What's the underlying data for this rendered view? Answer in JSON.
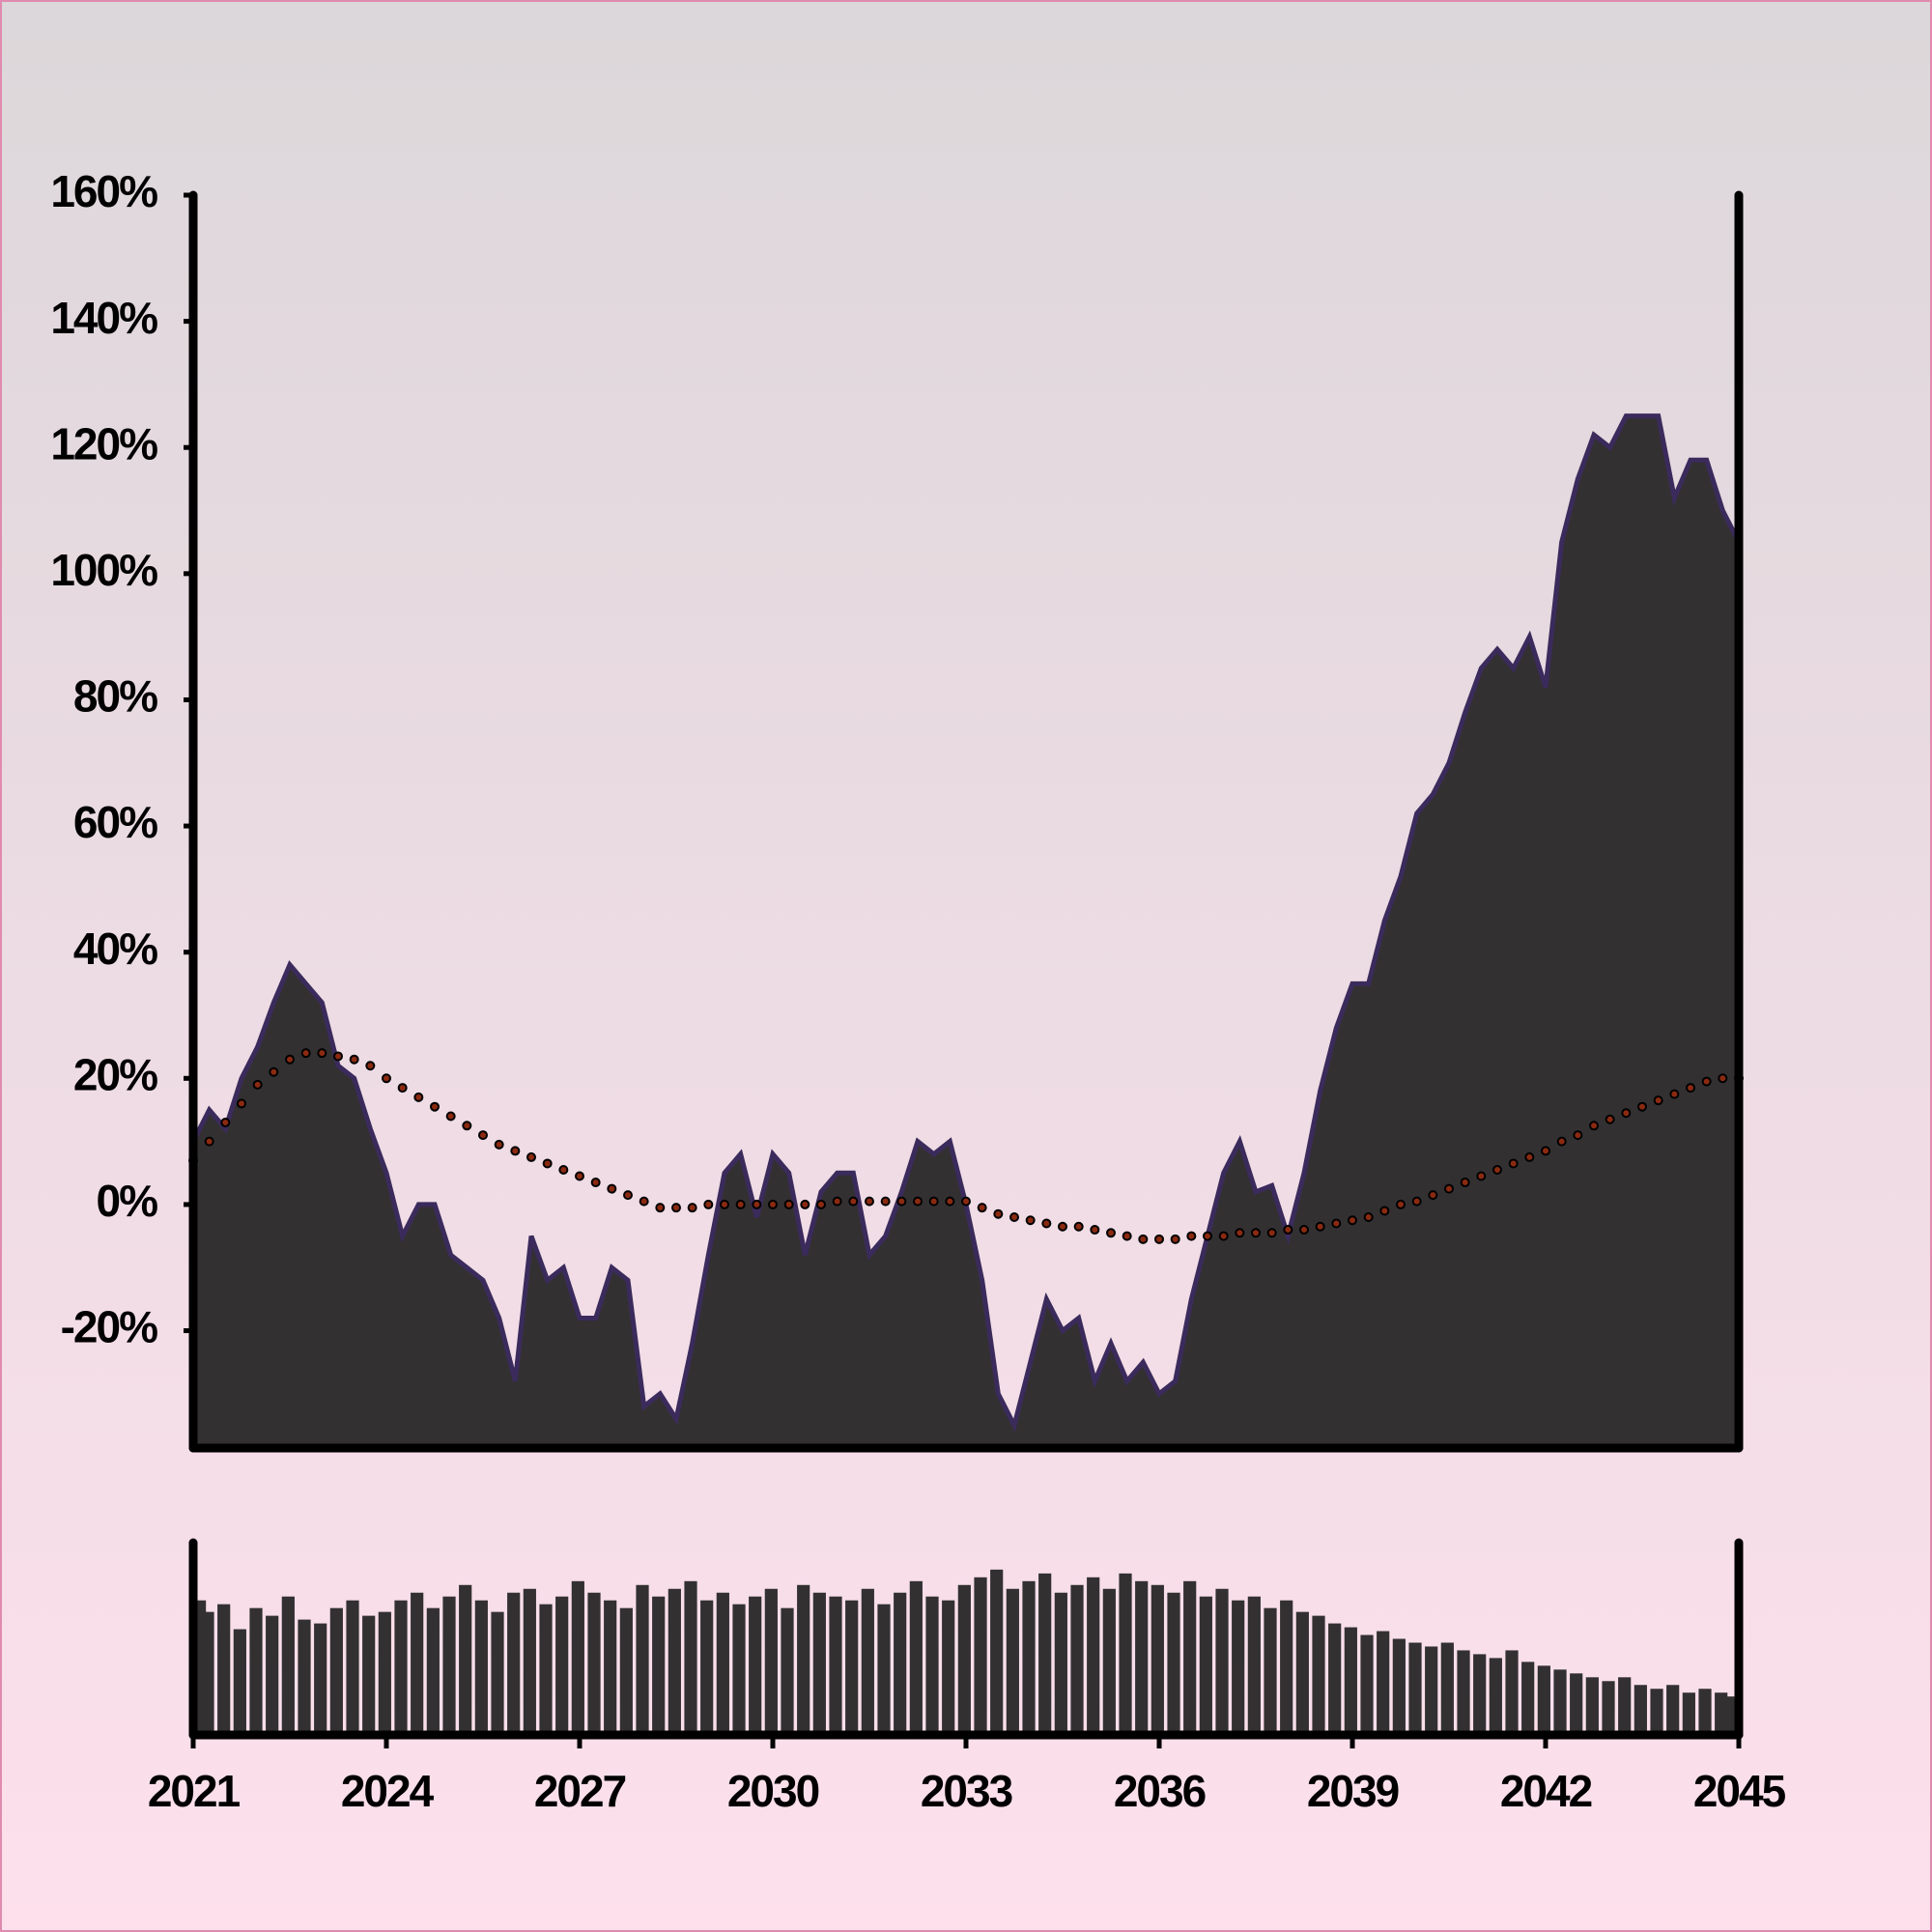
{
  "chart_data": {
    "type": "area",
    "x": [
      2021,
      2021.25,
      2021.5,
      2021.75,
      2022,
      2022.25,
      2022.5,
      2022.75,
      2023,
      2023.25,
      2023.5,
      2023.75,
      2024,
      2024.25,
      2024.5,
      2024.75,
      2025,
      2025.25,
      2025.5,
      2025.75,
      2026,
      2026.25,
      2026.5,
      2026.75,
      2027,
      2027.25,
      2027.5,
      2027.75,
      2028,
      2028.25,
      2028.5,
      2028.75,
      2029,
      2029.25,
      2029.5,
      2029.75,
      2030,
      2030.25,
      2030.5,
      2030.75,
      2031,
      2031.25,
      2031.5,
      2031.75,
      2032,
      2032.25,
      2032.5,
      2032.75,
      2033,
      2033.25,
      2033.5,
      2033.75,
      2034,
      2034.25,
      2034.5,
      2034.75,
      2035,
      2035.25,
      2035.5,
      2035.75,
      2036,
      2036.25,
      2036.5,
      2036.75,
      2037,
      2037.25,
      2037.5,
      2037.75,
      2038,
      2038.25,
      2038.5,
      2038.75,
      2039,
      2039.25,
      2039.5,
      2039.75,
      2040,
      2040.25,
      2040.5,
      2040.75,
      2041,
      2041.25,
      2041.5,
      2041.75,
      2042,
      2042.25,
      2042.5,
      2042.75,
      2043,
      2043.25,
      2043.5,
      2043.75,
      2044,
      2044.25,
      2044.5,
      2044.75,
      2045
    ],
    "series": [
      {
        "color": "#333032",
        "line_color": "#3b2b5c",
        "values": [
          10,
          15,
          12,
          20,
          25,
          32,
          38,
          35,
          32,
          22,
          20,
          12,
          5,
          -5,
          0,
          0,
          -8,
          -10,
          -12,
          -18,
          -28,
          -5,
          -12,
          -10,
          -18,
          -18,
          -10,
          -12,
          -32,
          -30,
          -34,
          -22,
          -8,
          5,
          8,
          -2,
          8,
          5,
          -8,
          2,
          5,
          5,
          -8,
          -5,
          2,
          10,
          8,
          10,
          0,
          -12,
          -30,
          -35,
          -25,
          -15,
          -20,
          -18,
          -28,
          -22,
          -28,
          -25,
          -30,
          -28,
          -15,
          -5,
          5,
          10,
          2,
          3,
          -5,
          5,
          18,
          28,
          35,
          35,
          45,
          52,
          62,
          65,
          70,
          78,
          85,
          88,
          85,
          90,
          82,
          105,
          115,
          122,
          120,
          125,
          125,
          125,
          112,
          118,
          118,
          110,
          105
        ]
      },
      {
        "color": "#8b2a10",
        "style": "dots",
        "values": [
          7,
          10,
          13,
          16,
          19,
          21,
          23,
          24,
          24,
          23.5,
          23,
          22,
          20,
          18.5,
          17,
          15.5,
          14,
          12.5,
          11,
          9.5,
          8.5,
          7.5,
          6.5,
          5.5,
          4.5,
          3.5,
          2.5,
          1.5,
          0.5,
          -0.5,
          -0.5,
          -0.5,
          0,
          0,
          0,
          0,
          0,
          0,
          0,
          0,
          0.5,
          0.5,
          0.5,
          0.5,
          0.5,
          0.5,
          0.5,
          0.5,
          0.5,
          -0.5,
          -1.5,
          -2,
          -2.5,
          -3,
          -3.5,
          -3.5,
          -4,
          -4.5,
          -5,
          -5.5,
          -5.5,
          -5.5,
          -5,
          -5,
          -5,
          -4.5,
          -4.5,
          -4.5,
          -4,
          -4,
          -3.5,
          -3,
          -2.5,
          -2,
          -1,
          0,
          0.5,
          1.5,
          2.5,
          3.5,
          4.5,
          5.5,
          6.5,
          7.5,
          8.5,
          10,
          11,
          12.5,
          13.5,
          14.5,
          15.5,
          16.5,
          17.5,
          18.5,
          19.5,
          20,
          20
        ]
      }
    ],
    "volume": {
      "color": "#333032",
      "ylim": [
        0,
        100
      ],
      "values": [
        70,
        64,
        68,
        55,
        66,
        62,
        72,
        60,
        58,
        66,
        70,
        62,
        64,
        70,
        74,
        66,
        72,
        78,
        70,
        64,
        74,
        76,
        68,
        72,
        80,
        74,
        70,
        66,
        78,
        72,
        76,
        80,
        70,
        74,
        68,
        72,
        76,
        66,
        78,
        74,
        72,
        70,
        76,
        68,
        74,
        80,
        72,
        70,
        78,
        82,
        86,
        76,
        80,
        84,
        74,
        78,
        82,
        76,
        84,
        80,
        78,
        74,
        80,
        72,
        76,
        70,
        72,
        66,
        70,
        64,
        62,
        58,
        56,
        52,
        54,
        50,
        48,
        46,
        48,
        44,
        42,
        40,
        44,
        38,
        36,
        34,
        32,
        30,
        28,
        30,
        26,
        24,
        26,
        22,
        24,
        22,
        20
      ]
    },
    "xlim": [
      2021,
      2045
    ],
    "xticks": [
      2021,
      2024,
      2027,
      2030,
      2033,
      2036,
      2039,
      2042,
      2045
    ],
    "ylim": [
      -38.6,
      160
    ],
    "yticks": [
      {
        "value": -20,
        "label": "-20%"
      },
      {
        "value": 0,
        "label": "0%"
      },
      {
        "value": 20,
        "label": "20%"
      },
      {
        "value": 40,
        "label": "40%"
      },
      {
        "value": 60,
        "label": "60%"
      },
      {
        "value": 80,
        "label": "80%"
      },
      {
        "value": 100,
        "label": "100%"
      },
      {
        "value": 120,
        "label": "120%"
      },
      {
        "value": 140,
        "label": "140%"
      },
      {
        "value": 160,
        "label": "160%"
      }
    ],
    "grid": false
  }
}
